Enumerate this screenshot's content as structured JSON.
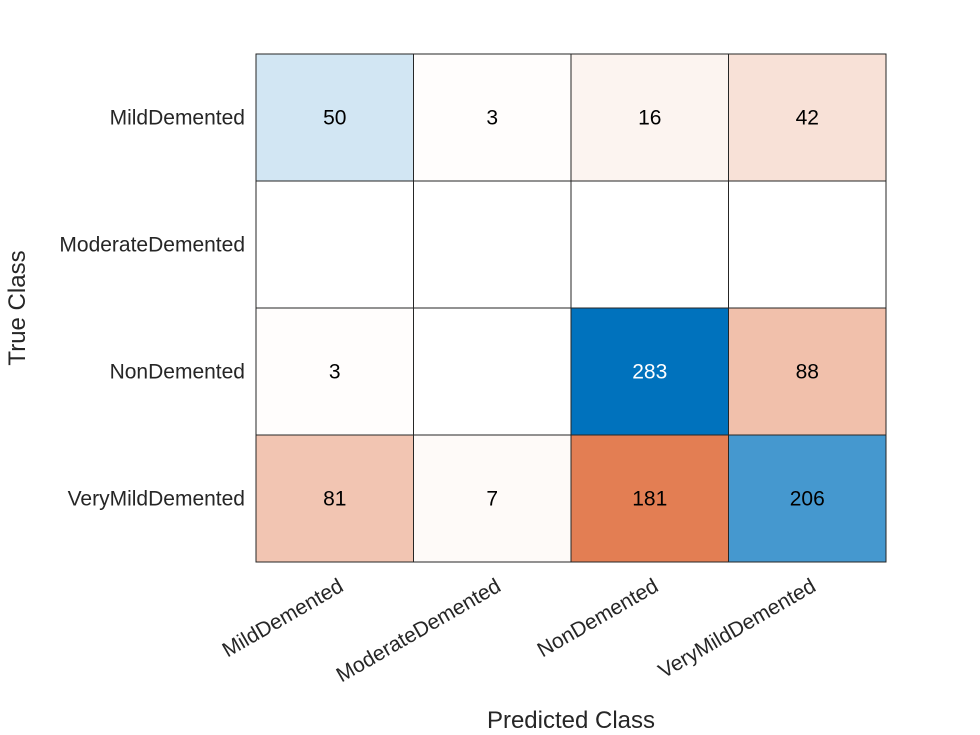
{
  "chart_data": {
    "type": "heatmap",
    "title": "",
    "xlabel": "Predicted Class",
    "ylabel": "True Class",
    "x_categories": [
      "MildDemented",
      "ModerateDemented",
      "NonDemented",
      "VeryMildDemented"
    ],
    "y_categories": [
      "MildDemented",
      "ModerateDemented",
      "NonDemented",
      "VeryMildDemented"
    ],
    "matrix": [
      [
        50,
        3,
        16,
        42
      ],
      [
        null,
        null,
        null,
        null
      ],
      [
        3,
        null,
        283,
        88
      ],
      [
        81,
        7,
        181,
        206
      ]
    ],
    "colors": {
      "diagonal": "#0072bd",
      "off_diagonal": "#d95319",
      "grid": "#262626",
      "text_dark": "#000000",
      "text_light": "#ffffff"
    }
  }
}
